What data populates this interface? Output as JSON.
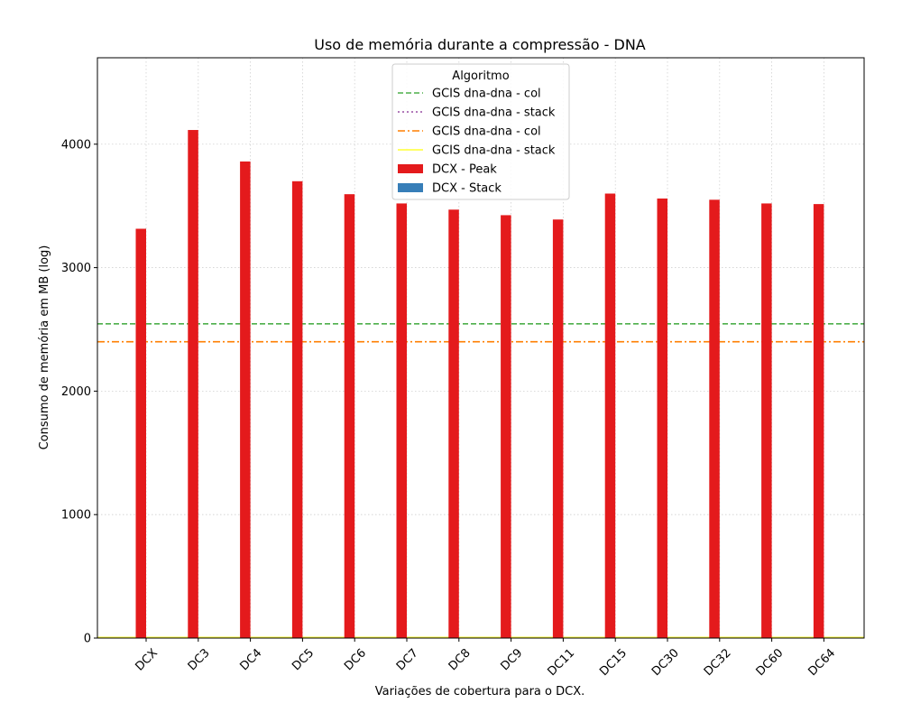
{
  "chart_data": {
    "type": "bar",
    "title": "Uso de memória durante a compressão -  DNA",
    "xlabel": "Variações de cobertura para o DCX.",
    "ylabel": "Consumo de memória em MB (log)",
    "ylim": [
      0,
      4700
    ],
    "yticks": [
      0,
      1000,
      2000,
      3000,
      4000
    ],
    "grid": true,
    "legend_title": "Algoritmo",
    "legend_position": "top-center",
    "categories": [
      "DCX",
      "DC3",
      "DC4",
      "DC5",
      "DC6",
      "DC7",
      "DC8",
      "DC9",
      "DC11",
      "DC15",
      "DC30",
      "DC32",
      "DC60",
      "DC64"
    ],
    "series": [
      {
        "name": "DCX - Peak",
        "color": "#e41a1c",
        "values": [
          3315,
          4115,
          3860,
          3700,
          3595,
          3520,
          3470,
          3425,
          3390,
          3600,
          3560,
          3550,
          3520,
          3515
        ]
      },
      {
        "name": "DCX - Stack",
        "color": "#377eb8",
        "values": [
          0,
          0,
          0,
          0,
          0,
          0,
          0,
          0,
          0,
          0,
          0,
          0,
          0,
          0
        ]
      }
    ],
    "reference_lines": [
      {
        "name": "GCIS dna-dna - col",
        "color": "#4daf4a",
        "style": "dashed",
        "value": 2545
      },
      {
        "name": "GCIS dna-dna - stack",
        "color": "#984ea3",
        "style": "dotted",
        "value": 5
      },
      {
        "name": "GCIS dna-dna - col",
        "color": "#ff7f00",
        "style": "dashdot",
        "value": 2400
      },
      {
        "name": "GCIS dna-dna - stack",
        "color": "#ffff33",
        "style": "solid",
        "value": 5
      }
    ]
  }
}
